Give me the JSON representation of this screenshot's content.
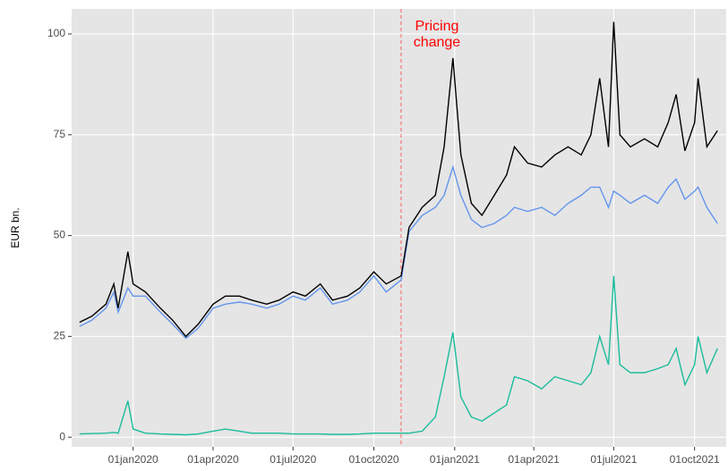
{
  "chart_data": {
    "type": "line",
    "y_label": "EUR bn.",
    "x": [
      "2019-11-01",
      "2019-11-15",
      "2019-12-01",
      "2019-12-10",
      "2019-12-15",
      "2019-12-26",
      "2020-01-01",
      "2020-01-15",
      "2020-02-01",
      "2020-02-15",
      "2020-03-01",
      "2020-03-15",
      "2020-04-01",
      "2020-04-15",
      "2020-05-01",
      "2020-05-15",
      "2020-06-01",
      "2020-06-15",
      "2020-07-01",
      "2020-07-15",
      "2020-08-01",
      "2020-08-15",
      "2020-09-01",
      "2020-09-15",
      "2020-10-01",
      "2020-10-15",
      "2020-11-01",
      "2020-11-10",
      "2020-11-25",
      "2020-12-10",
      "2020-12-20",
      "2020-12-30",
      "2021-01-08",
      "2021-01-20",
      "2021-02-01",
      "2021-02-15",
      "2021-03-01",
      "2021-03-10",
      "2021-03-25",
      "2021-04-10",
      "2021-04-25",
      "2021-05-10",
      "2021-05-25",
      "2021-06-05",
      "2021-06-15",
      "2021-06-25",
      "2021-07-01",
      "2021-07-08",
      "2021-07-20",
      "2021-08-05",
      "2021-08-20",
      "2021-09-01",
      "2021-09-10",
      "2021-09-20",
      "2021-10-01",
      "2021-10-05",
      "2021-10-15",
      "2021-10-27"
    ],
    "series": [
      {
        "color": "#000000",
        "values": [
          28.5,
          30,
          33,
          38,
          32,
          46,
          38,
          36,
          32,
          29,
          25,
          28,
          33,
          35,
          35,
          34,
          33,
          34,
          36,
          35,
          38,
          34,
          35,
          37,
          41,
          38,
          40,
          52,
          57,
          60,
          72,
          94,
          70,
          58,
          55,
          60,
          65,
          72,
          68,
          67,
          70,
          72,
          70,
          75,
          89,
          72,
          103,
          75,
          72,
          74,
          72,
          78,
          85,
          71,
          78,
          89,
          72,
          76
        ]
      },
      {
        "color": "#6495ed",
        "values": [
          27.5,
          29,
          32,
          36,
          31,
          37,
          35,
          35,
          31,
          28,
          24.5,
          27,
          32,
          33,
          33.5,
          33,
          32,
          33,
          35,
          34,
          37,
          33,
          34,
          36,
          40,
          36,
          39,
          51,
          55,
          57,
          60,
          67,
          60,
          54,
          52,
          53,
          55,
          57,
          56,
          57,
          55,
          58,
          60,
          62,
          62,
          57,
          61,
          60,
          58,
          60,
          58,
          62,
          64,
          59,
          61,
          62,
          57,
          53
        ]
      },
      {
        "color": "#1abc9c",
        "values": [
          0.8,
          0.9,
          1.0,
          1.2,
          1.0,
          9,
          2,
          1,
          0.8,
          0.7,
          0.6,
          0.8,
          1.5,
          2,
          1.5,
          1,
          1,
          1,
          0.8,
          0.8,
          0.8,
          0.7,
          0.7,
          0.8,
          1.0,
          1.0,
          1.0,
          1.0,
          1.5,
          5,
          15,
          26,
          10,
          5,
          4,
          6,
          8,
          15,
          14,
          12,
          15,
          14,
          13,
          16,
          25,
          18,
          40,
          18,
          16,
          16,
          17,
          18,
          22,
          13,
          18,
          25,
          16,
          22
        ]
      }
    ],
    "xlim": [
      "2019-10-23",
      "2021-11-06"
    ],
    "xticks": [
      {
        "value": "2020-01-01",
        "label": "01jan2020"
      },
      {
        "value": "2020-04-01",
        "label": "01apr2020"
      },
      {
        "value": "2020-07-01",
        "label": "01jul2020"
      },
      {
        "value": "2020-10-01",
        "label": "01oct2020"
      },
      {
        "value": "2021-01-01",
        "label": "01jan2021"
      },
      {
        "value": "2021-04-01",
        "label": "01apr2021"
      },
      {
        "value": "2021-07-01",
        "label": "01jul2021"
      },
      {
        "value": "2021-10-01",
        "label": "01oct2021"
      }
    ],
    "ylim": [
      -2.4,
      106.2
    ],
    "yticks": [
      0,
      25,
      50,
      75,
      100
    ],
    "grid": true,
    "annotation": {
      "x": "2020-11-01",
      "lines": [
        "Pricing",
        "change"
      ],
      "color": "#ff0000"
    }
  }
}
